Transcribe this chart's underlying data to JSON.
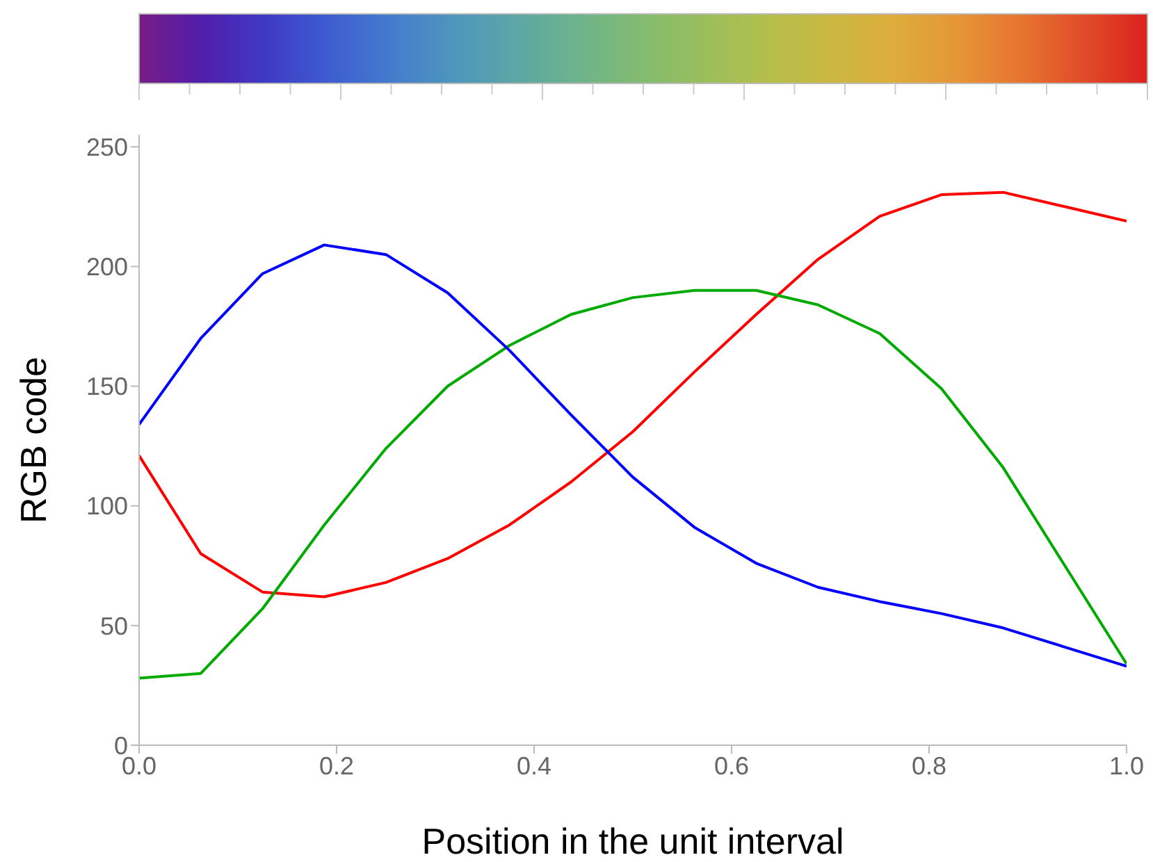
{
  "chart_data": {
    "type": "line",
    "xlabel": "Position in the unit interval",
    "ylabel": "RGB code",
    "x": [
      0,
      0.0625,
      0.125,
      0.1875,
      0.25,
      0.3125,
      0.375,
      0.4375,
      0.5,
      0.5625,
      0.625,
      0.6875,
      0.75,
      0.8125,
      0.875,
      0.9375,
      1
    ],
    "series": [
      {
        "color": "#ff0000",
        "values": [
          121,
          80,
          64,
          62,
          68,
          78,
          92,
          110,
          131,
          156,
          180,
          203,
          221,
          230,
          231,
          225,
          219
        ]
      },
      {
        "color": "#00aa00",
        "values": [
          28,
          30,
          57,
          92,
          124,
          150,
          167,
          180,
          187,
          190,
          190,
          184,
          172,
          149,
          116,
          75,
          34
        ]
      },
      {
        "color": "#0000ff",
        "values": [
          134,
          170,
          197,
          209,
          205,
          189,
          165,
          138,
          112,
          91,
          76,
          66,
          60,
          55,
          49,
          41,
          33
        ]
      }
    ],
    "xlim": [
      0,
      1
    ],
    "xticks": [
      {
        "value": 0,
        "label": "0.0"
      },
      {
        "value": 0.2,
        "label": "0.2"
      },
      {
        "value": 0.4,
        "label": "0.4"
      },
      {
        "value": 0.6,
        "label": "0.6"
      },
      {
        "value": 0.8,
        "label": "0.8"
      },
      {
        "value": 1,
        "label": "1.0"
      }
    ],
    "ylim": [
      0,
      255
    ],
    "yticks": [
      0,
      50,
      100,
      150,
      200,
      250
    ],
    "grid": false,
    "legend": false,
    "marker": "none",
    "line_style": "solid"
  }
}
